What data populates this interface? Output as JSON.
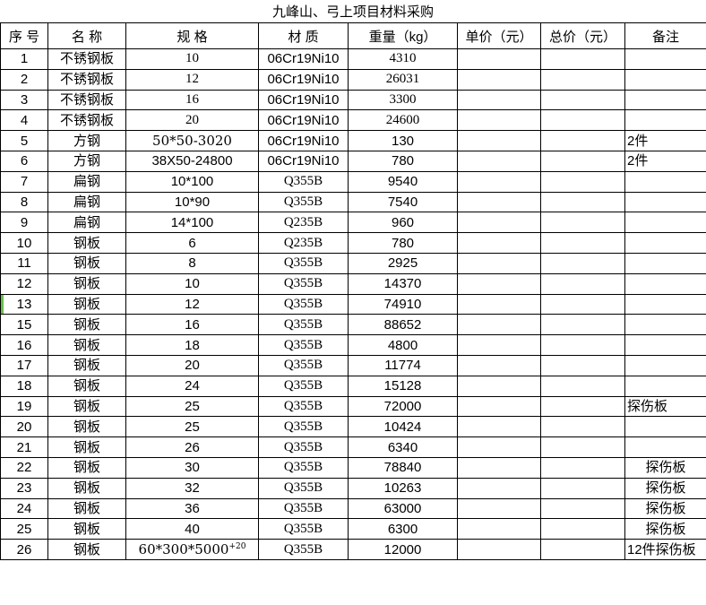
{
  "title": "九峰山、弓上项目材料采购",
  "colors": {
    "background": "#ffffff",
    "text": "#000000",
    "grid_border": "#000000",
    "marker_green": "#6CBE4C"
  },
  "row_marker": {
    "row_seq": "13"
  },
  "table": {
    "headers": [
      "序 号",
      "名 称",
      "规 格",
      "材 质",
      "重量（kg）",
      "单价（元）",
      "总价（元）",
      "备注"
    ],
    "rows": [
      {
        "seq": "1",
        "name": "不锈钢板",
        "spec": "10",
        "spec_sup": "",
        "material": "06Cr19Ni10",
        "weight": "4310",
        "unit_price": "",
        "total_price": "",
        "remark": ""
      },
      {
        "seq": "2",
        "name": "不锈钢板",
        "spec": "12",
        "spec_sup": "",
        "material": "06Cr19Ni10",
        "weight": "26031",
        "unit_price": "",
        "total_price": "",
        "remark": ""
      },
      {
        "seq": "3",
        "name": "不锈钢板",
        "spec": "16",
        "spec_sup": "",
        "material": "06Cr19Ni10",
        "weight": "3300",
        "unit_price": "",
        "total_price": "",
        "remark": ""
      },
      {
        "seq": "4",
        "name": "不锈钢板",
        "spec": "20",
        "spec_sup": "",
        "material": "06Cr19Ni10",
        "weight": "24600",
        "unit_price": "",
        "total_price": "",
        "remark": ""
      },
      {
        "seq": "5",
        "name": "方钢",
        "spec": "50*50-3020",
        "spec_sup": "",
        "material": "06Cr19Ni10",
        "weight": "130",
        "unit_price": "",
        "total_price": "",
        "remark": "2件"
      },
      {
        "seq": "6",
        "name": "方钢",
        "spec": "38X50-24800",
        "spec_sup": "",
        "material": "06Cr19Ni10",
        "weight": "780",
        "unit_price": "",
        "total_price": "",
        "remark": "2件"
      },
      {
        "seq": "7",
        "name": "扁钢",
        "spec": "10*100",
        "spec_sup": "",
        "material": "Q355B",
        "weight": "9540",
        "unit_price": "",
        "total_price": "",
        "remark": ""
      },
      {
        "seq": "8",
        "name": "扁钢",
        "spec": "10*90",
        "spec_sup": "",
        "material": "Q355B",
        "weight": "7540",
        "unit_price": "",
        "total_price": "",
        "remark": ""
      },
      {
        "seq": "9",
        "name": "扁钢",
        "spec": "14*100",
        "spec_sup": "",
        "material": "Q235B",
        "weight": "960",
        "unit_price": "",
        "total_price": "",
        "remark": ""
      },
      {
        "seq": "10",
        "name": "钢板",
        "spec": "6",
        "spec_sup": "",
        "material": "Q235B",
        "weight": "780",
        "unit_price": "",
        "total_price": "",
        "remark": ""
      },
      {
        "seq": "11",
        "name": "钢板",
        "spec": "8",
        "spec_sup": "",
        "material": "Q355B",
        "weight": "2925",
        "unit_price": "",
        "total_price": "",
        "remark": ""
      },
      {
        "seq": "12",
        "name": "钢板",
        "spec": "10",
        "spec_sup": "",
        "material": "Q355B",
        "weight": "14370",
        "unit_price": "",
        "total_price": "",
        "remark": ""
      },
      {
        "seq": "13",
        "name": "钢板",
        "spec": "12",
        "spec_sup": "",
        "material": "Q355B",
        "weight": "74910",
        "unit_price": "",
        "total_price": "",
        "remark": ""
      },
      {
        "seq": "15",
        "name": "钢板",
        "spec": "16",
        "spec_sup": "",
        "material": "Q355B",
        "weight": "88652",
        "unit_price": "",
        "total_price": "",
        "remark": ""
      },
      {
        "seq": "16",
        "name": "钢板",
        "spec": "18",
        "spec_sup": "",
        "material": "Q355B",
        "weight": "4800",
        "unit_price": "",
        "total_price": "",
        "remark": ""
      },
      {
        "seq": "17",
        "name": "钢板",
        "spec": "20",
        "spec_sup": "",
        "material": "Q355B",
        "weight": "11774",
        "unit_price": "",
        "total_price": "",
        "remark": ""
      },
      {
        "seq": "18",
        "name": "钢板",
        "spec": "24",
        "spec_sup": "",
        "material": "Q355B",
        "weight": "15128",
        "unit_price": "",
        "total_price": "",
        "remark": ""
      },
      {
        "seq": "19",
        "name": "钢板",
        "spec": "25",
        "spec_sup": "",
        "material": "Q355B",
        "weight": "72000",
        "unit_price": "",
        "total_price": "",
        "remark": "探伤板"
      },
      {
        "seq": "20",
        "name": "钢板",
        "spec": "25",
        "spec_sup": "",
        "material": "Q355B",
        "weight": "10424",
        "unit_price": "",
        "total_price": "",
        "remark": ""
      },
      {
        "seq": "21",
        "name": "钢板",
        "spec": "26",
        "spec_sup": "",
        "material": "Q355B",
        "weight": "6340",
        "unit_price": "",
        "total_price": "",
        "remark": ""
      },
      {
        "seq": "22",
        "name": "钢板",
        "spec": "30",
        "spec_sup": "",
        "material": "Q355B",
        "weight": "78840",
        "unit_price": "",
        "total_price": "",
        "remark": "探伤板"
      },
      {
        "seq": "23",
        "name": "钢板",
        "spec": "32",
        "spec_sup": "",
        "material": "Q355B",
        "weight": "10263",
        "unit_price": "",
        "total_price": "",
        "remark": "探伤板"
      },
      {
        "seq": "24",
        "name": "钢板",
        "spec": "36",
        "spec_sup": "",
        "material": "Q355B",
        "weight": "63000",
        "unit_price": "",
        "total_price": "",
        "remark": "探伤板"
      },
      {
        "seq": "25",
        "name": "钢板",
        "spec": "40",
        "spec_sup": "",
        "material": "Q355B",
        "weight": "6300",
        "unit_price": "",
        "total_price": "",
        "remark": "探伤板"
      },
      {
        "seq": "26",
        "name": "钢板",
        "spec": "60*300*5000",
        "spec_sup": "+20",
        "material": "Q355B",
        "weight": "12000",
        "unit_price": "",
        "total_price": "",
        "remark": "12件探伤板"
      }
    ]
  }
}
